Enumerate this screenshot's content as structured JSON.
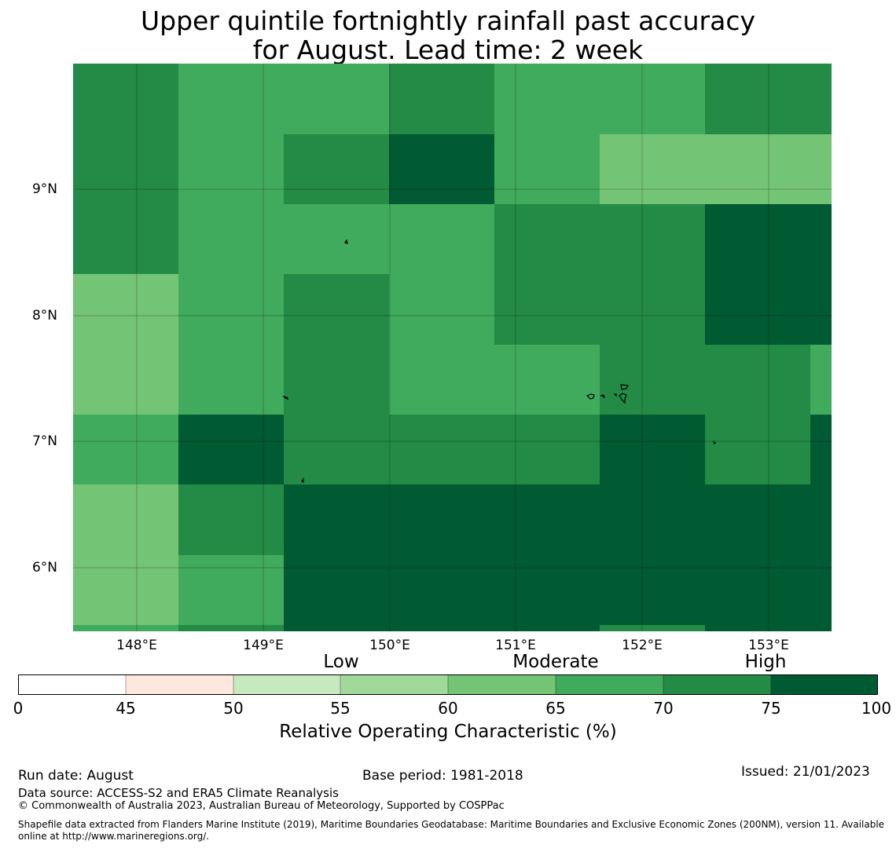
{
  "title": {
    "line1": "Upper quintile fortnightly rainfall past accuracy",
    "line2": "for August. Lead time: 2 week"
  },
  "map": {
    "lon_labels": [
      "148°E",
      "149°E",
      "150°E",
      "151°E",
      "152°E",
      "153°E"
    ],
    "lat_labels": [
      "9°N",
      "8°N",
      "7°N",
      "6°N"
    ],
    "colors": {
      "c60_65": "#74c476",
      "c65_70": "#41ab5d",
      "c70_75": "#238b45",
      "c75_100": "#005a32"
    },
    "grid_rows_top_to_bottom": [
      [
        "70-75",
        "65-70",
        "65-70",
        "70-75",
        "65-70",
        "65-70",
        "70-75",
        "70-75"
      ],
      [
        "70-75",
        "65-70",
        "70-75",
        "75-100",
        "65-70",
        "60-65",
        "60-65",
        "60-65"
      ],
      [
        "70-75",
        "65-70",
        "65-70",
        "65-70",
        "70-75",
        "70-75",
        "75-100",
        "75-100"
      ],
      [
        "60-65",
        "65-70",
        "70-75",
        "65-70",
        "70-75",
        "70-75",
        "75-100",
        "75-100"
      ],
      [
        "60-65",
        "65-70",
        "70-75",
        "65-70",
        "65-70",
        "70-75",
        "70-75",
        "65-70"
      ],
      [
        "65-70",
        "75-100",
        "70-75",
        "70-75",
        "70-75",
        "75-100",
        "70-75",
        "75-100"
      ],
      [
        "60-65",
        "70-75",
        "75-100",
        "75-100",
        "75-100",
        "75-100",
        "75-100",
        "75-100"
      ],
      [
        "60-65",
        "65-70",
        "75-100",
        "75-100",
        "75-100",
        "75-100",
        "75-100",
        "75-100"
      ]
    ]
  },
  "legend": {
    "categories": [
      "Low",
      "Moderate",
      "High"
    ],
    "ticks": [
      "0",
      "45",
      "50",
      "55",
      "60",
      "65",
      "70",
      "75",
      "100"
    ],
    "colors": [
      "#ffffff",
      "#fee8de",
      "#c7e9c0",
      "#a1d99b",
      "#74c476",
      "#41ab5d",
      "#238b45",
      "#005a32"
    ],
    "label": "Relative Operating Characteristic (%)"
  },
  "footer": {
    "run_date": "Run date: August",
    "base_period": "Base period: 1981-2018",
    "issued": "Issued: 21/01/2023",
    "data_source": "Data source: ACCESS-S2 and ERA5 Climate Reanalysis",
    "copyright": "© Commonwealth of Australia 2023, Australian Bureau of Meteorology, Supported by COSPPac",
    "shapefile_line1": "Shapefile data extracted from Flanders Marine Institute (2019), Maritime Boundaries Geodatabase: Maritime Boundaries and Exclusive Economic Zones (200NM), version 11. Available",
    "shapefile_line2": "online at http://www.marineregions.org/."
  }
}
